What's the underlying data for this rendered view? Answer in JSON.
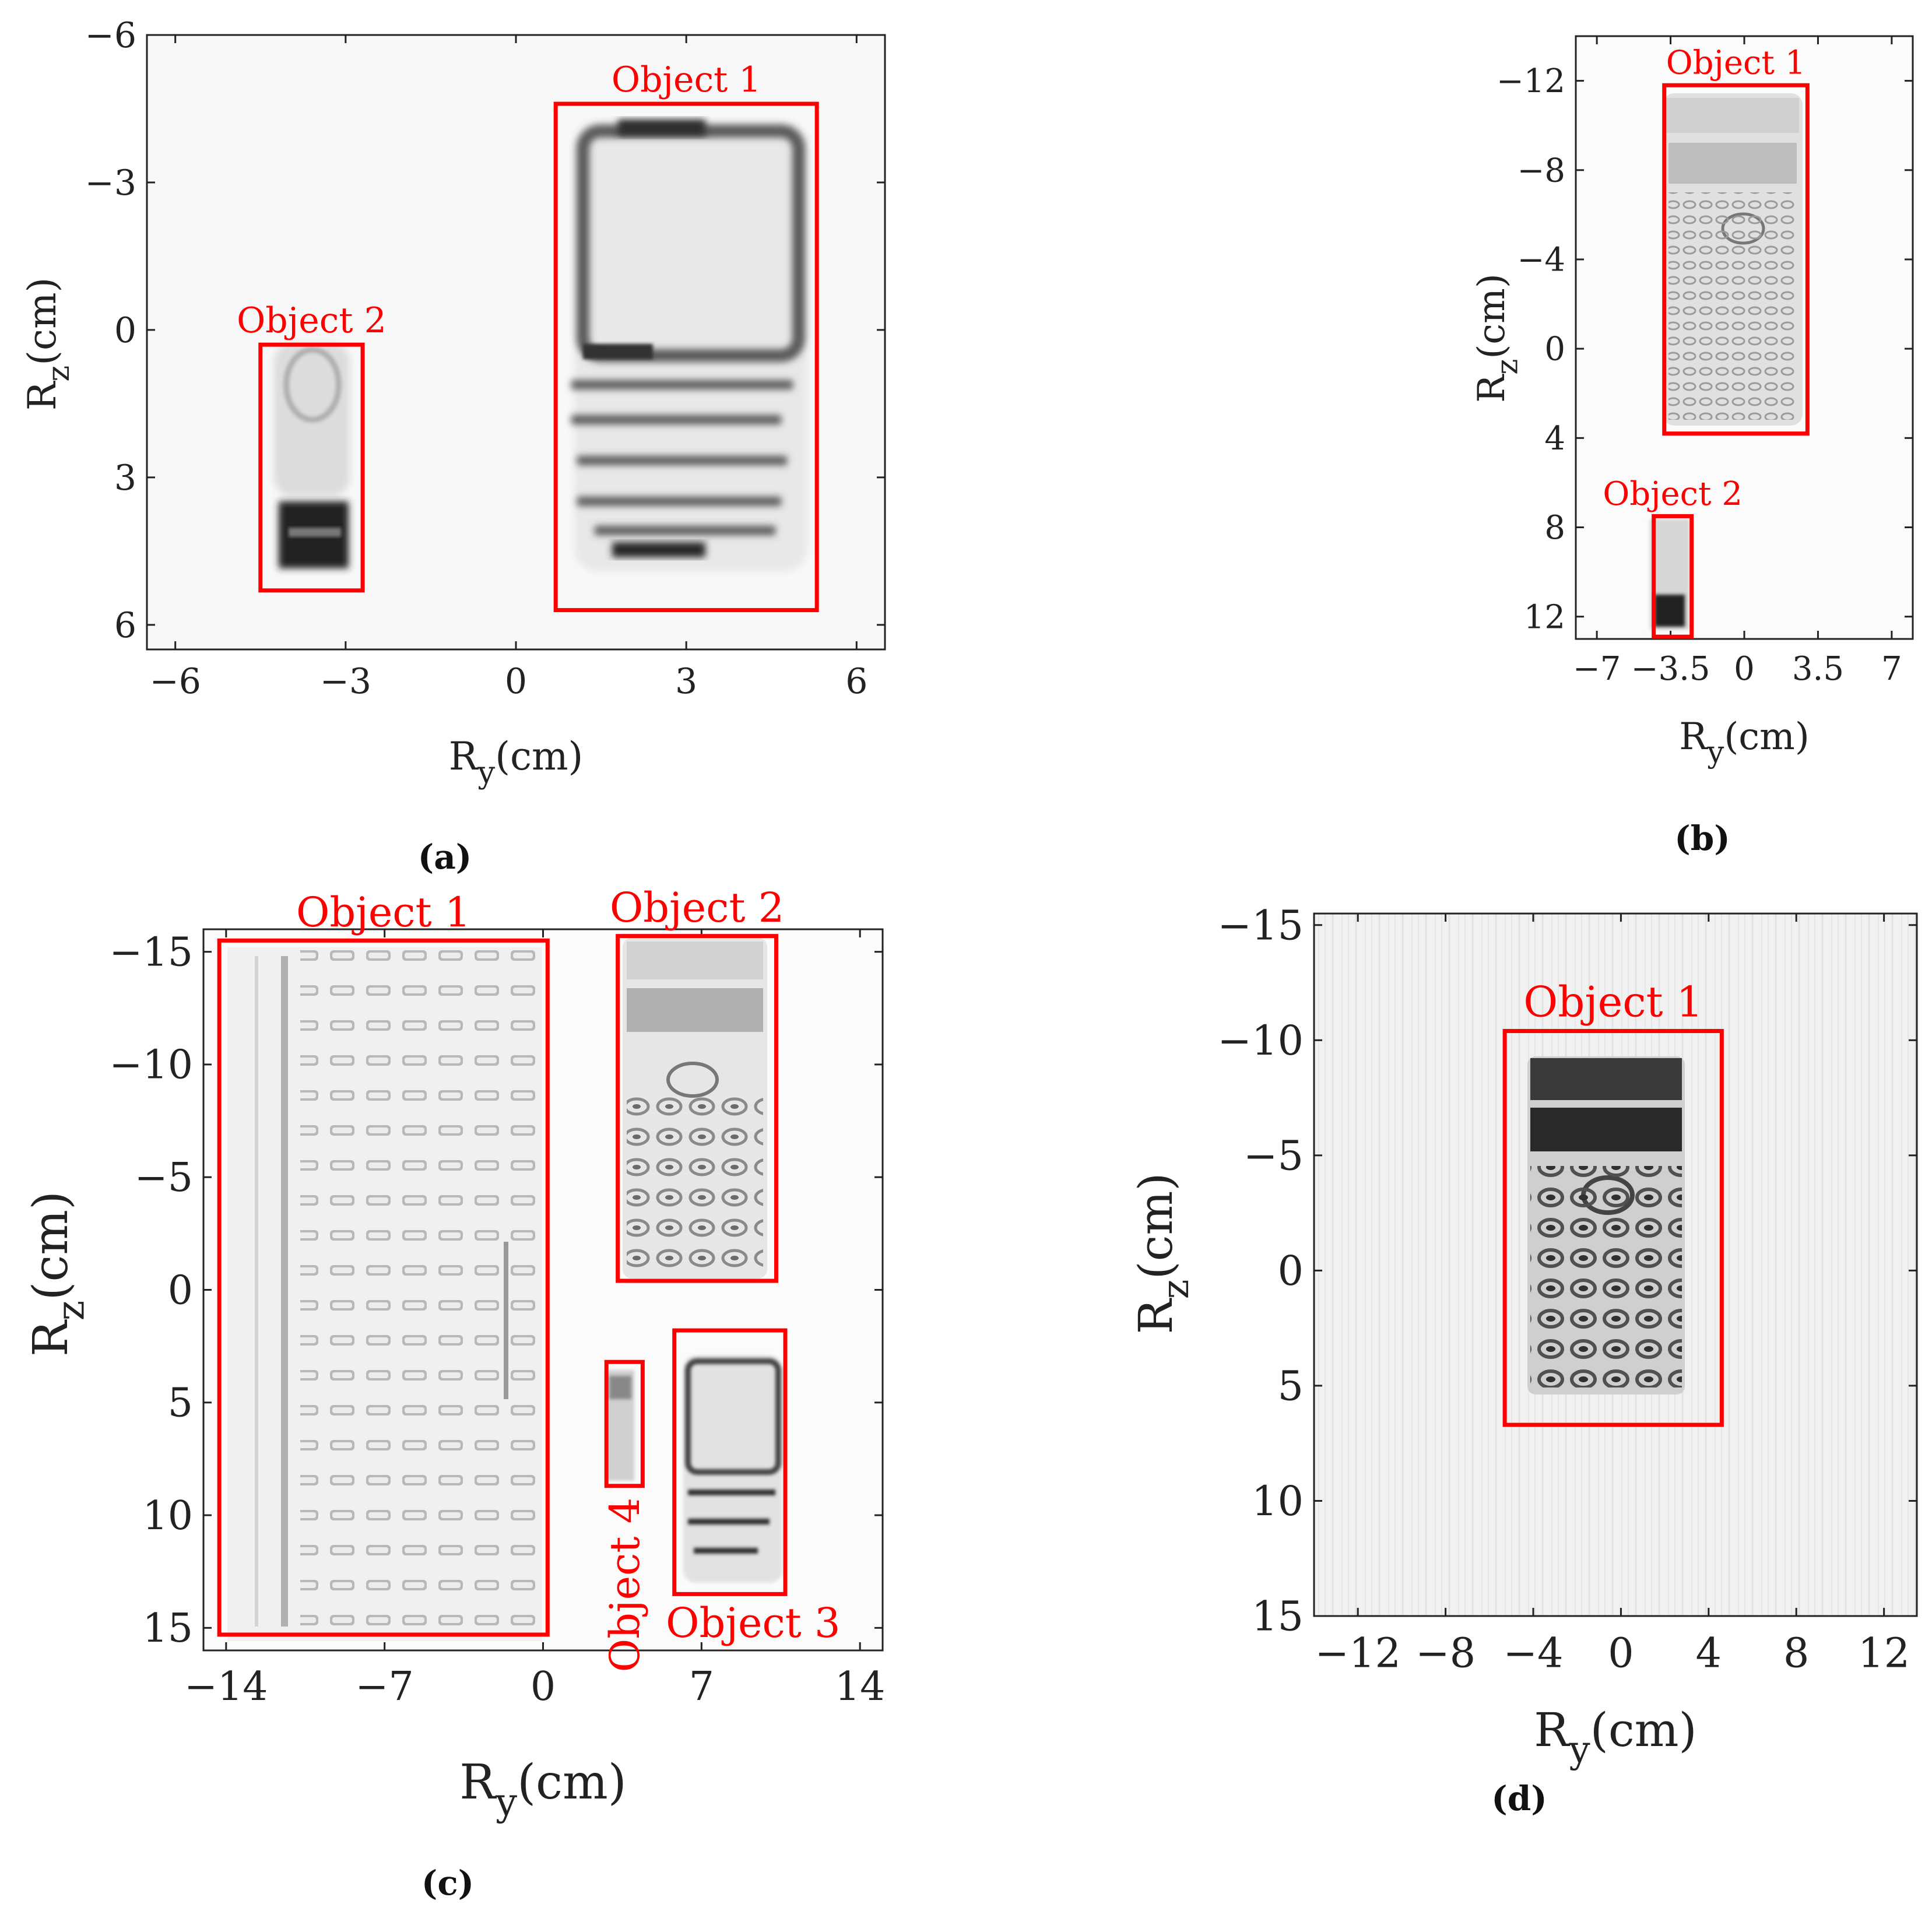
{
  "panels": [
    {
      "id": "a",
      "caption": "(a)",
      "x_label_main": "R",
      "x_label_sub": "y",
      "x_label_unit": "(cm)",
      "y_label_main": "R",
      "y_label_sub": "z",
      "y_label_unit": "(cm)",
      "x_range": [
        -6.5,
        6.5
      ],
      "y_range": [
        -6,
        6.5
      ],
      "x_ticks": [
        {
          "v": -6,
          "t": "−6"
        },
        {
          "v": -3,
          "t": "−3"
        },
        {
          "v": 0,
          "t": "0"
        },
        {
          "v": 3,
          "t": "3"
        },
        {
          "v": 6,
          "t": "6"
        }
      ],
      "y_ticks": [
        {
          "v": -6,
          "t": "−6"
        },
        {
          "v": -3,
          "t": "−3"
        },
        {
          "v": 0,
          "t": "0"
        },
        {
          "v": 3,
          "t": "3"
        },
        {
          "v": 6,
          "t": "6"
        }
      ],
      "objects": [
        {
          "label": "Object 1",
          "y0": 0.7,
          "y1": 5.3,
          "z0": -4.6,
          "z1": 5.7,
          "label_pos": "top",
          "rotate": false
        },
        {
          "label": "Object 2",
          "y0": -4.5,
          "y1": -2.7,
          "z0": 0.3,
          "z1": 5.3,
          "label_pos": "top",
          "rotate": false
        }
      ]
    },
    {
      "id": "b",
      "caption": "(b)",
      "x_label_main": "R",
      "x_label_sub": "y",
      "x_label_unit": "(cm)",
      "y_label_main": "R",
      "y_label_sub": "z",
      "y_label_unit": "(cm)",
      "x_range": [
        -8,
        8
      ],
      "y_range": [
        -14,
        13
      ],
      "x_ticks": [
        {
          "v": -7,
          "t": "−7"
        },
        {
          "v": -3.5,
          "t": "−3.5"
        },
        {
          "v": 0,
          "t": "0"
        },
        {
          "v": 3.5,
          "t": "3.5"
        },
        {
          "v": 7,
          "t": "7"
        }
      ],
      "y_ticks": [
        {
          "v": -12,
          "t": "−12"
        },
        {
          "v": -8,
          "t": "−8"
        },
        {
          "v": -4,
          "t": "−4"
        },
        {
          "v": 0,
          "t": "0"
        },
        {
          "v": 4,
          "t": "4"
        },
        {
          "v": 8,
          "t": "8"
        },
        {
          "v": 12,
          "t": "12"
        }
      ],
      "objects": [
        {
          "label": "Object 1",
          "y0": -3.8,
          "y1": 3.0,
          "z0": -11.8,
          "z1": 3.8,
          "label_pos": "top",
          "rotate": false
        },
        {
          "label": "Object 2",
          "y0": -4.3,
          "y1": -2.5,
          "z0": 7.5,
          "z1": 12.9,
          "label_pos": "top",
          "rotate": false
        }
      ]
    },
    {
      "id": "c",
      "caption": "(c)",
      "x_label_main": "R",
      "x_label_sub": "y",
      "x_label_unit": "(cm)",
      "y_label_main": "R",
      "y_label_sub": "z",
      "y_label_unit": "(cm)",
      "x_range": [
        -15,
        15
      ],
      "y_range": [
        -16,
        16
      ],
      "x_ticks": [
        {
          "v": -14,
          "t": "−14"
        },
        {
          "v": -7,
          "t": "−7"
        },
        {
          "v": 0,
          "t": "0"
        },
        {
          "v": 7,
          "t": "7"
        },
        {
          "v": 14,
          "t": "14"
        }
      ],
      "y_ticks": [
        {
          "v": -15,
          "t": "−15"
        },
        {
          "v": -10,
          "t": "−10"
        },
        {
          "v": -5,
          "t": "−5"
        },
        {
          "v": 0,
          "t": "0"
        },
        {
          "v": 5,
          "t": "5"
        },
        {
          "v": 10,
          "t": "10"
        },
        {
          "v": 15,
          "t": "15"
        }
      ],
      "objects": [
        {
          "label": "Object 1",
          "y0": -14.3,
          "y1": 0.2,
          "z0": -15.5,
          "z1": 15.3,
          "label_pos": "top",
          "rotate": false
        },
        {
          "label": "Object 2",
          "y0": 3.3,
          "y1": 10.3,
          "z0": -15.7,
          "z1": -0.4,
          "label_pos": "top",
          "rotate": false
        },
        {
          "label": "Object 3",
          "y0": 5.8,
          "y1": 10.7,
          "z0": 1.8,
          "z1": 13.5,
          "label_pos": "bottom",
          "rotate": false
        },
        {
          "label": "Object 4",
          "y0": 2.8,
          "y1": 4.4,
          "z0": 3.2,
          "z1": 8.7,
          "label_pos": "below-rotated",
          "rotate": true
        }
      ]
    },
    {
      "id": "d",
      "caption": "(d)",
      "x_label_main": "R",
      "x_label_sub": "y",
      "x_label_unit": "(cm)",
      "y_label_main": "R",
      "y_label_sub": "z",
      "y_label_unit": "(cm)",
      "x_range": [
        -14,
        13.5
      ],
      "y_range": [
        -15.5,
        15
      ],
      "x_ticks": [
        {
          "v": -12,
          "t": "−12"
        },
        {
          "v": -8,
          "t": "−8"
        },
        {
          "v": -4,
          "t": "−4"
        },
        {
          "v": 0,
          "t": "0"
        },
        {
          "v": 4,
          "t": "4"
        },
        {
          "v": 8,
          "t": "8"
        },
        {
          "v": 12,
          "t": "12"
        }
      ],
      "y_ticks": [
        {
          "v": -15,
          "t": "−15"
        },
        {
          "v": -10,
          "t": "−10"
        },
        {
          "v": -5,
          "t": "−5"
        },
        {
          "v": 0,
          "t": "0"
        },
        {
          "v": 5,
          "t": "5"
        },
        {
          "v": 10,
          "t": "10"
        },
        {
          "v": 15,
          "t": "15"
        }
      ],
      "objects": [
        {
          "label": "Object 1",
          "y0": -5.3,
          "y1": 4.6,
          "z0": -10.4,
          "z1": 6.7,
          "label_pos": "top",
          "rotate": false
        }
      ]
    }
  ]
}
